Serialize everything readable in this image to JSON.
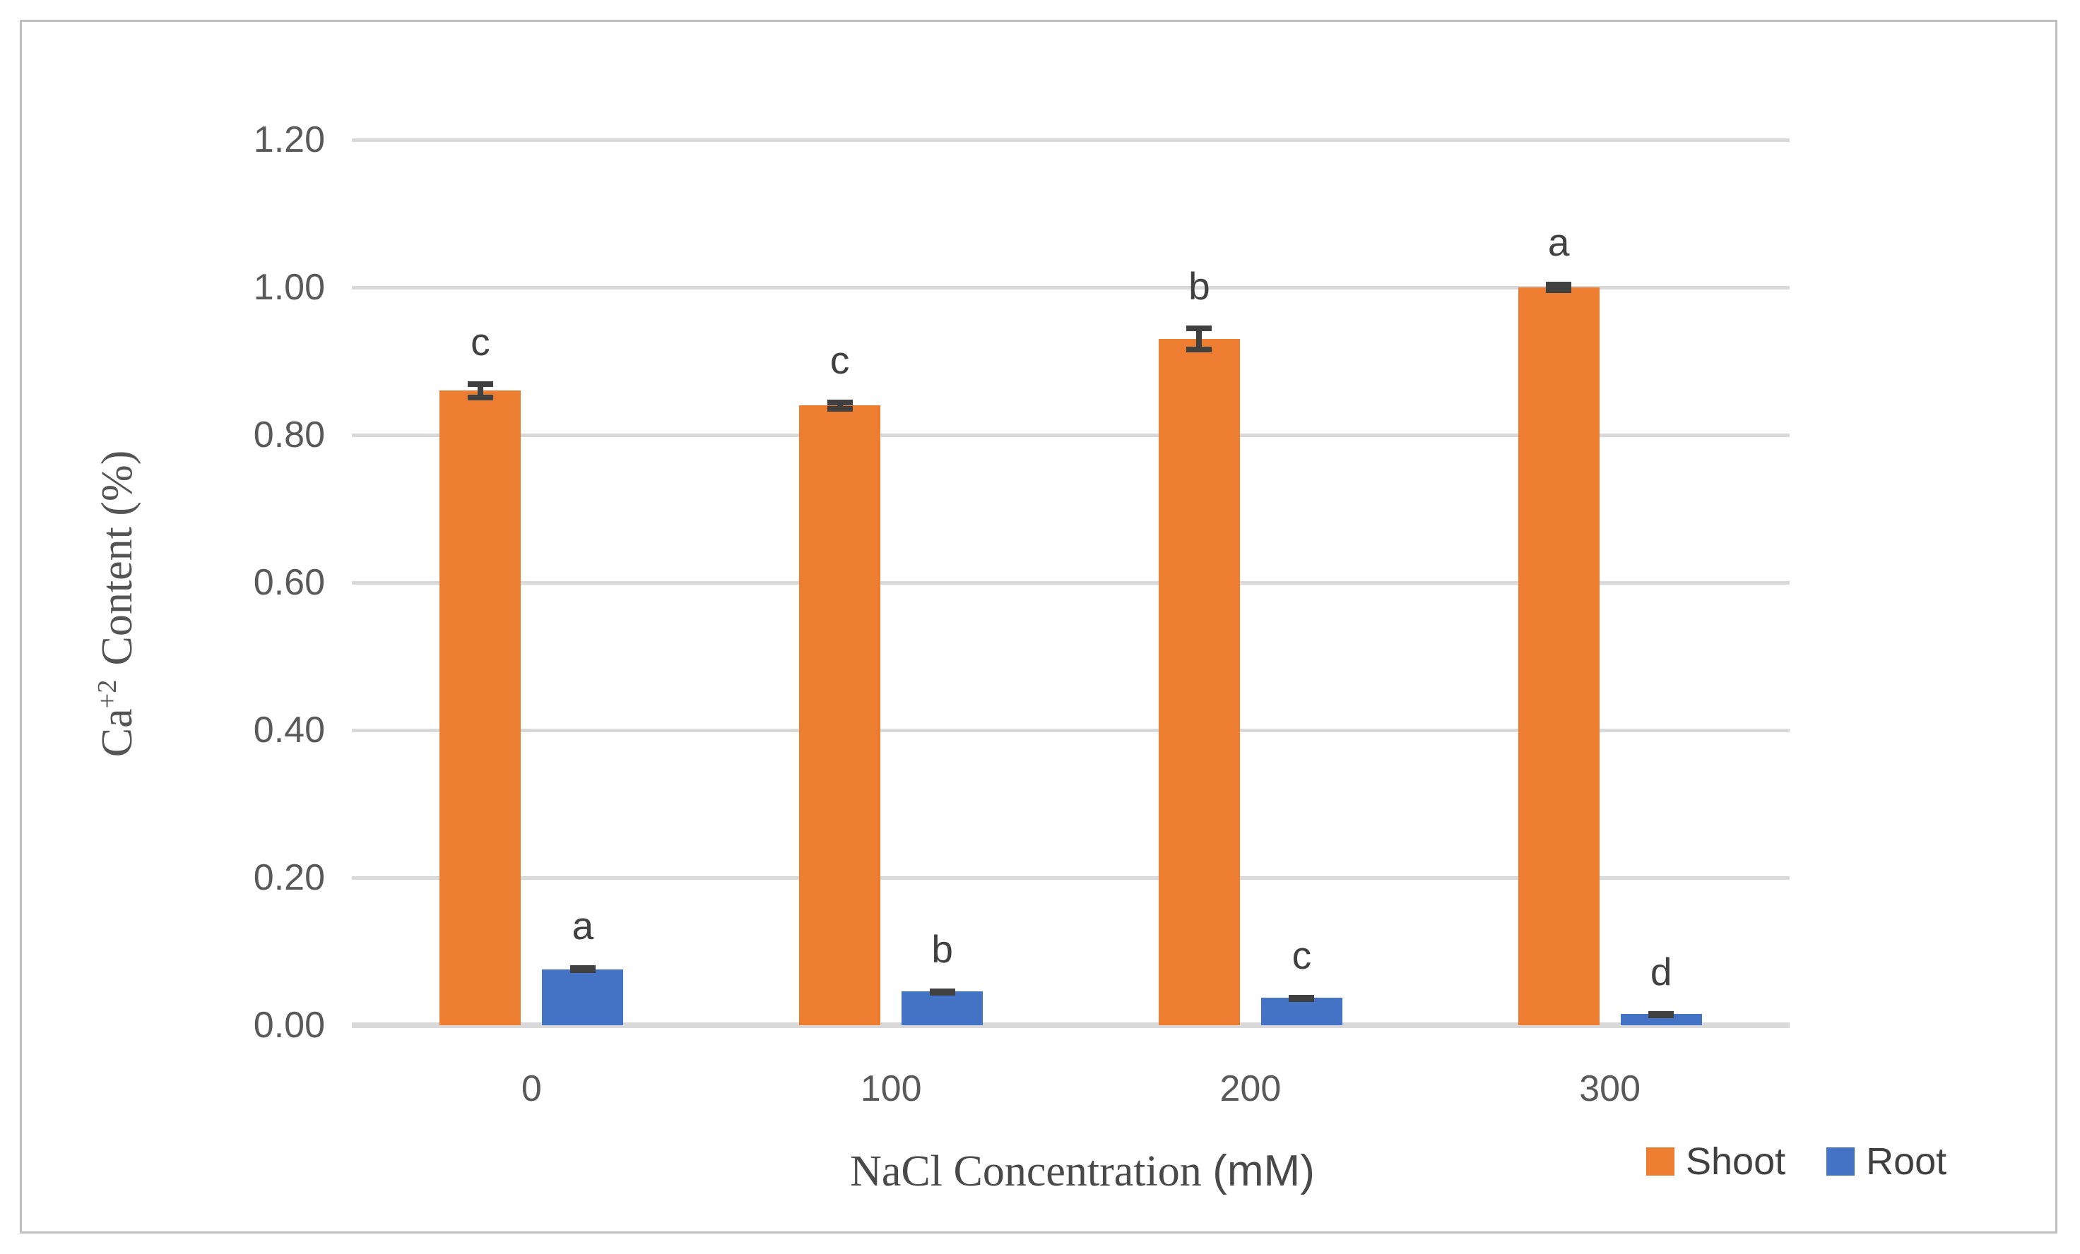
{
  "chart_data": {
    "type": "bar",
    "grouped": true,
    "categories": [
      "0",
      "100",
      "200",
      "300"
    ],
    "series": [
      {
        "name": "Shoot",
        "color": "#ED7D31",
        "values": [
          0.86,
          0.84,
          0.93,
          1.0
        ],
        "errors": [
          0.013,
          0.008,
          0.018,
          0.008
        ],
        "letters": [
          "c",
          "c",
          "b",
          "a"
        ]
      },
      {
        "name": "Root",
        "color": "#4472C4",
        "values": [
          0.076,
          0.046,
          0.037,
          0.015
        ],
        "errors": [
          0.005,
          0.004,
          0.004,
          0.004
        ],
        "letters": [
          "a",
          "b",
          "c",
          "d"
        ]
      }
    ],
    "xlabel_serif": "NaCl Concentration ",
    "xlabel_sans": "(mM)",
    "ylabel_base": "Ca",
    "ylabel_sup": "+2",
    "ylabel_rest": "Content (%)",
    "ylim": [
      0,
      1.2
    ],
    "ytick_step": 0.2,
    "yticks": [
      "0.00",
      "0.20",
      "0.40",
      "0.60",
      "0.80",
      "1.00",
      "1.20"
    ],
    "grid": "horizontal",
    "legend_position": "bottom-right",
    "colors": {
      "gridline": "#d9d9d9",
      "error_bar": "#404040",
      "tick_text": "#595959",
      "letter_text": "#404040",
      "frame_border": "#bfbfbf"
    }
  }
}
